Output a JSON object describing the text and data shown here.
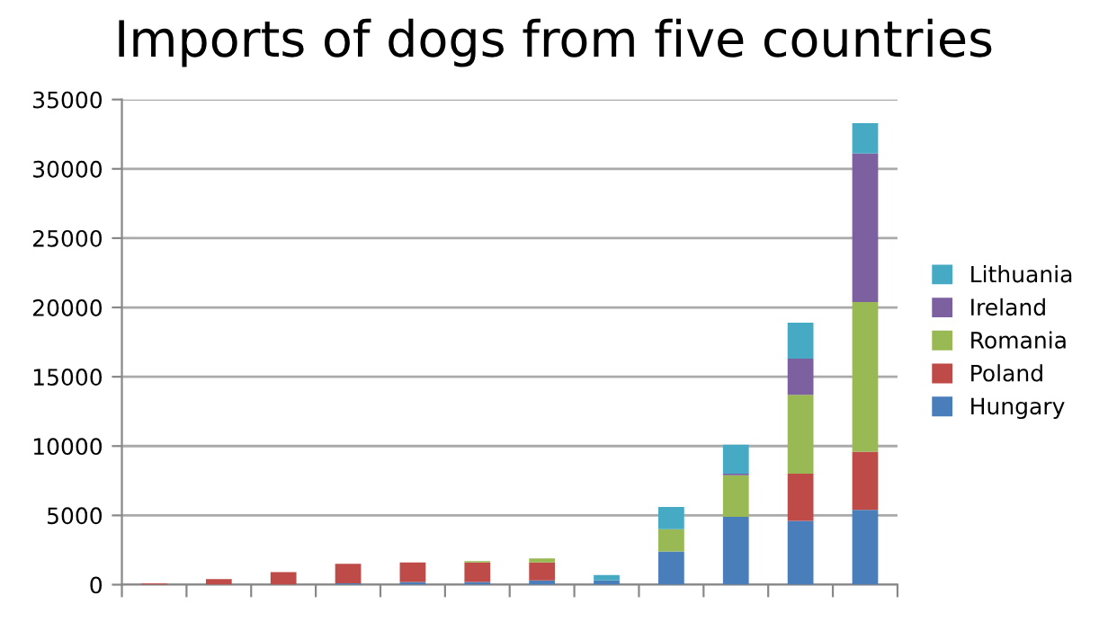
{
  "chart_data": {
    "type": "bar",
    "title": "Imports of dogs from five countries",
    "stacked": true,
    "categories": [
      null,
      null,
      null,
      null,
      null,
      null,
      null,
      null,
      null,
      null,
      null,
      null
    ],
    "series": [
      {
        "name": "Hungary",
        "color": "#4a7ebb",
        "values": [
          0,
          0,
          0,
          100,
          200,
          200,
          300,
          300,
          2400,
          4900,
          4600,
          5400
        ]
      },
      {
        "name": "Poland",
        "color": "#be4b48",
        "values": [
          100,
          400,
          900,
          1400,
          1400,
          1400,
          1300,
          0,
          0,
          0,
          3400,
          4200
        ]
      },
      {
        "name": "Romania",
        "color": "#98b954",
        "values": [
          0,
          0,
          0,
          0,
          0,
          100,
          300,
          0,
          1600,
          3000,
          5700,
          10800
        ]
      },
      {
        "name": "Ireland",
        "color": "#7d60a0",
        "values": [
          0,
          0,
          0,
          0,
          0,
          0,
          0,
          0,
          0,
          100,
          2600,
          10700
        ]
      },
      {
        "name": "Lithuania",
        "color": "#46aac5",
        "values": [
          0,
          0,
          0,
          0,
          0,
          0,
          0,
          400,
          1600,
          2100,
          2600,
          2200
        ]
      }
    ],
    "ylim": [
      0,
      35000
    ],
    "yticks": [
      0,
      5000,
      10000,
      15000,
      20000,
      25000,
      30000,
      35000
    ],
    "grid": "y",
    "legend": "right"
  }
}
